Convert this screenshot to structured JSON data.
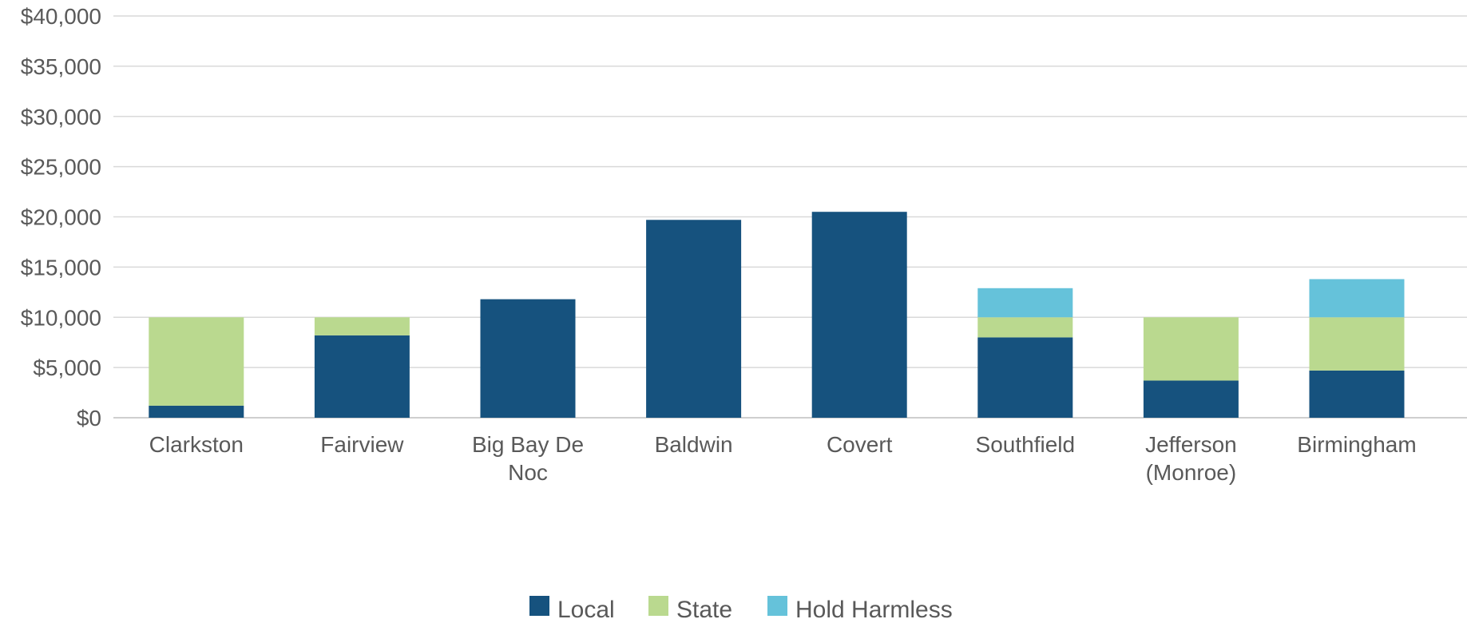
{
  "chart_data": {
    "type": "bar",
    "stacked": true,
    "categories": [
      [
        "Clarkston"
      ],
      [
        "Fairview"
      ],
      [
        "Big Bay De",
        "Noc"
      ],
      [
        "Baldwin"
      ],
      [
        "Covert"
      ],
      [
        "Southfield"
      ],
      [
        "Jefferson",
        "(Monroe)"
      ],
      [
        "Birmingham"
      ]
    ],
    "series": [
      {
        "name": "Local",
        "color": "#16527E",
        "values": [
          1200,
          8200,
          11800,
          19700,
          20500,
          8000,
          3700,
          4700
        ]
      },
      {
        "name": "State",
        "color": "#BAD98F",
        "values": [
          8800,
          1800,
          0,
          0,
          0,
          2000,
          6300,
          5300
        ]
      },
      {
        "name": "Hold Harmless",
        "color": "#65C2DA",
        "values": [
          0,
          0,
          0,
          0,
          0,
          2900,
          0,
          3800
        ]
      }
    ],
    "y_ticks": [
      "$0",
      "$5,000",
      "$10,000",
      "$15,000",
      "$20,000",
      "$25,000",
      "$30,000",
      "$35,000",
      "$40,000"
    ],
    "ylim": [
      0,
      40000
    ],
    "grid": true,
    "legend_position": "bottom"
  }
}
